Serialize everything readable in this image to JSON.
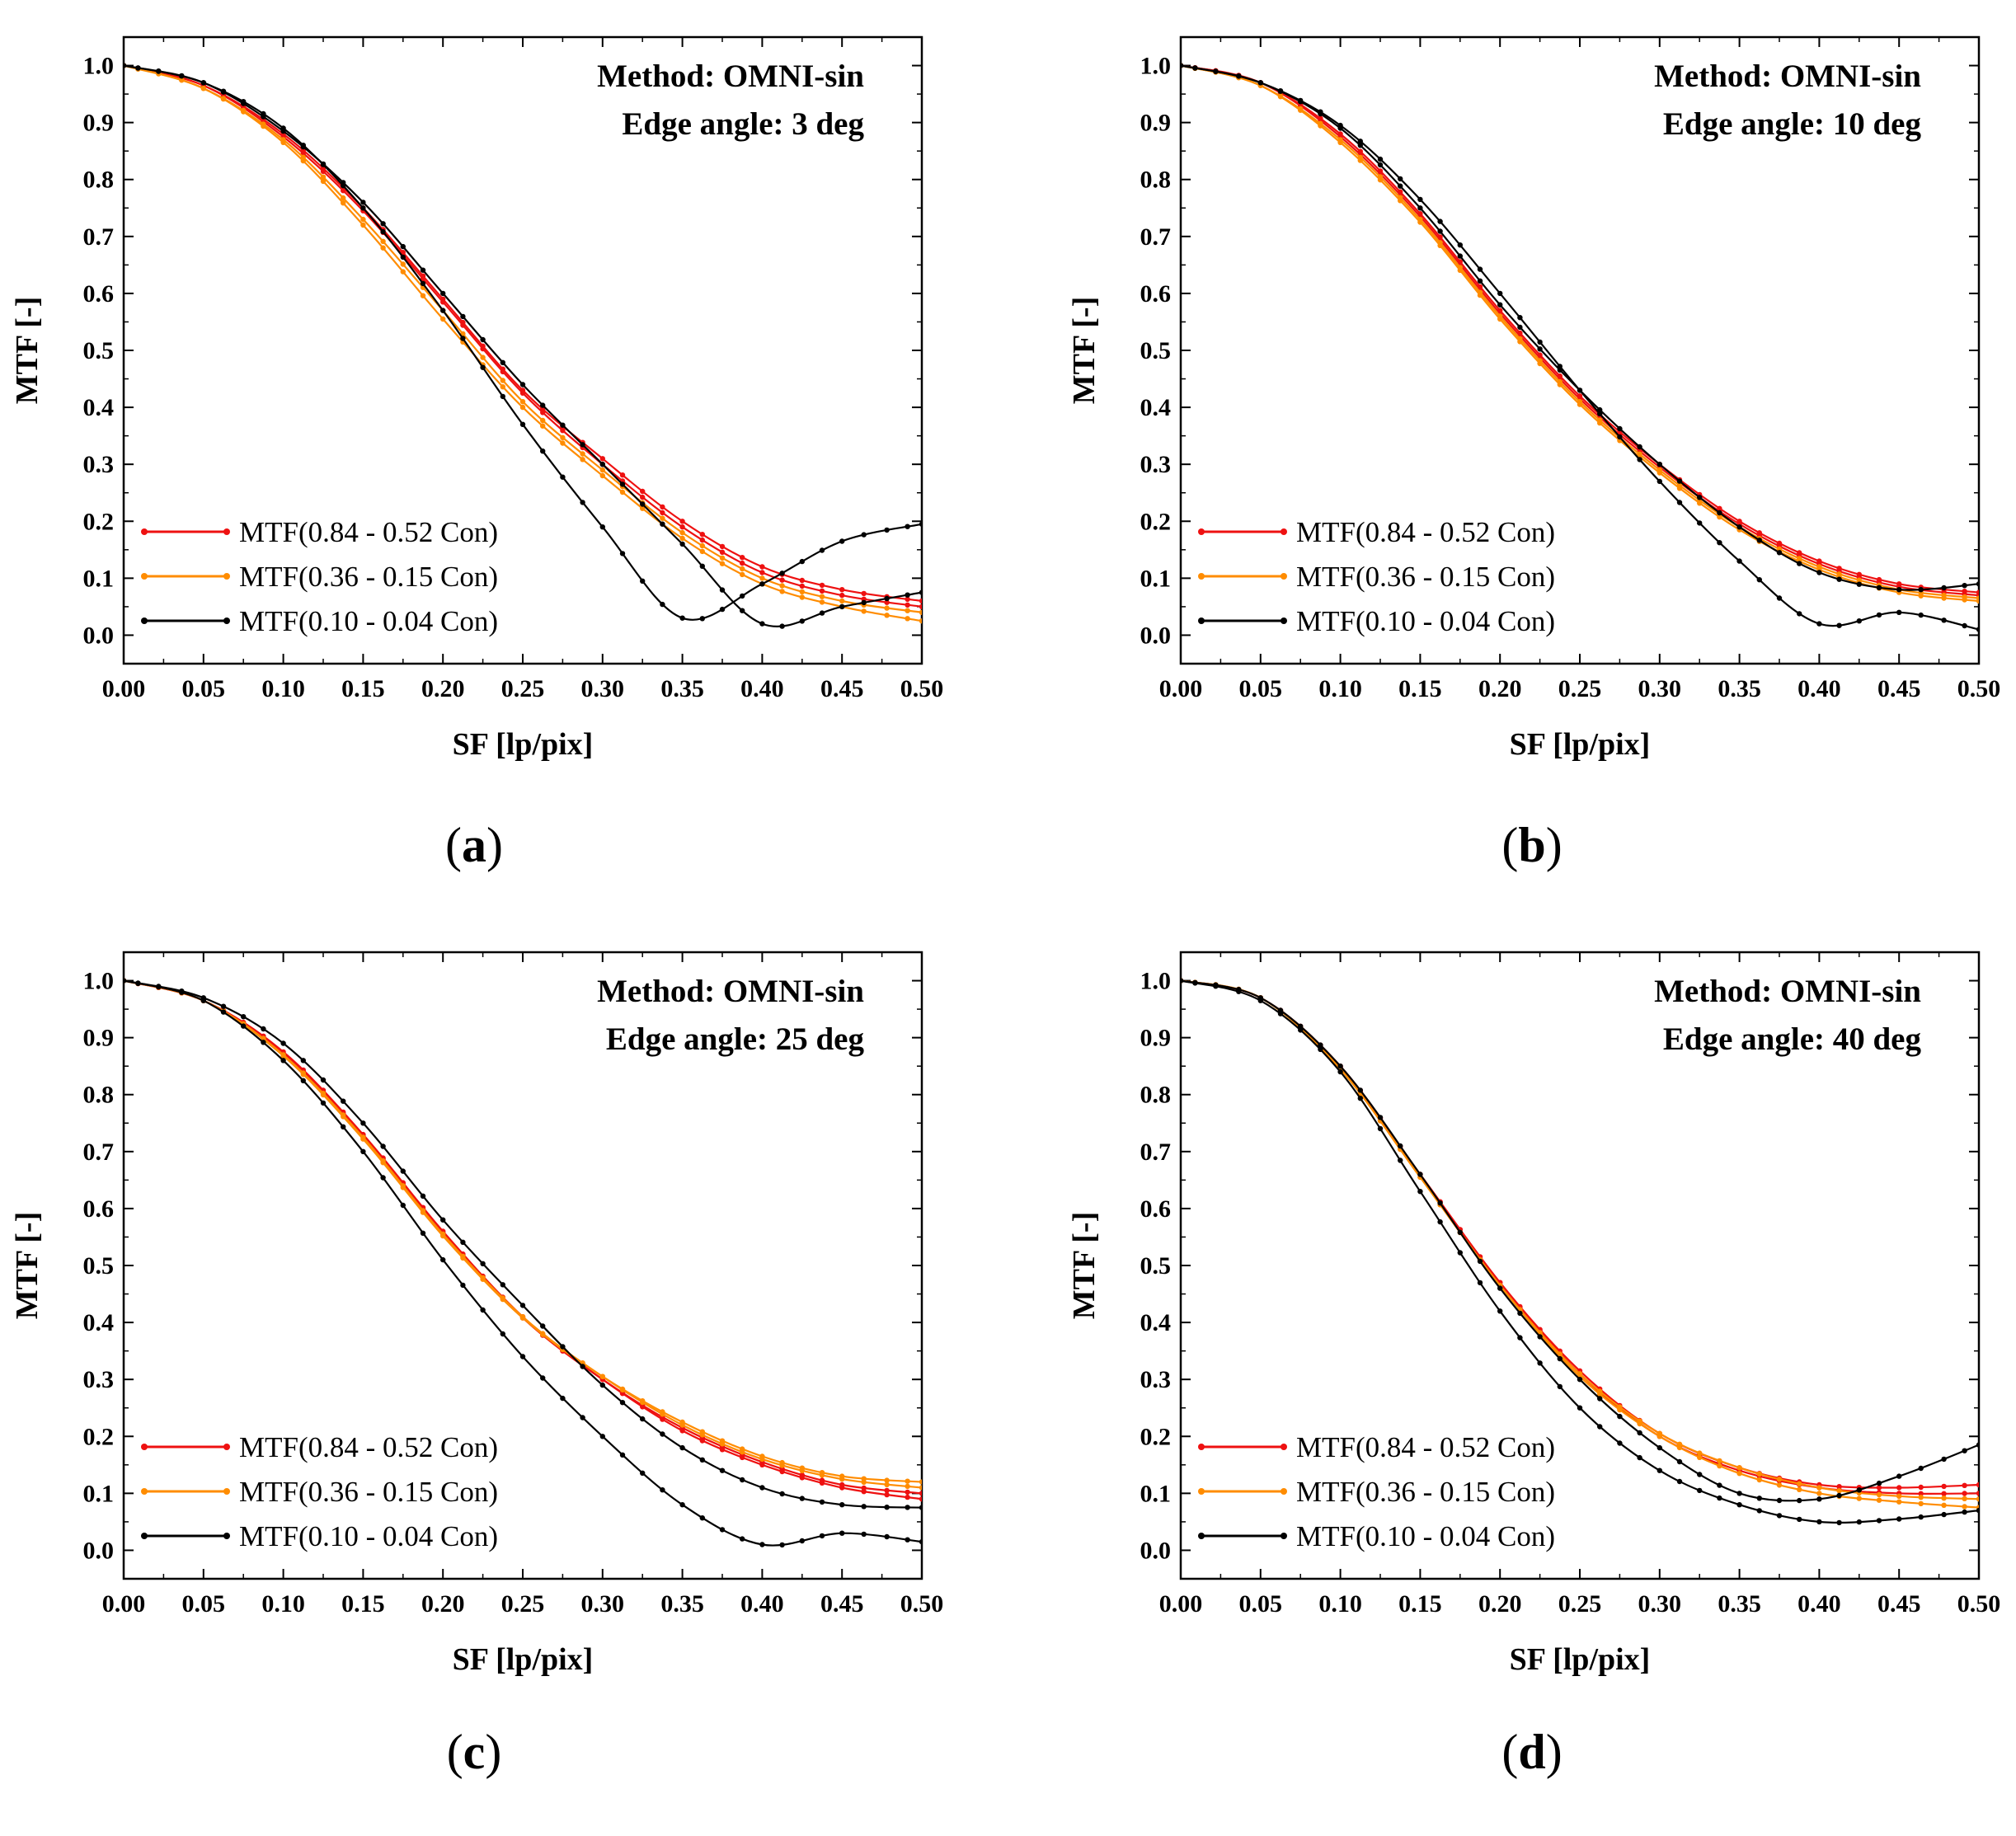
{
  "figure": {
    "series_styles": [
      {
        "name": "MTF(0.84 - 0.52 Con)",
        "color": "#ee1111"
      },
      {
        "name": "MTF(0.36 - 0.15 Con)",
        "color": "#ff8c00"
      },
      {
        "name": "MTF(0.10 - 0.04 Con)",
        "color": "#000000"
      }
    ]
  },
  "chart_data": [
    {
      "type": "line",
      "panel_letter": "a",
      "annotation": [
        "Method: OMNI-sin",
        "Edge angle: 3 deg"
      ],
      "xlabel": "SF [lp/pix]",
      "ylabel": "MTF [-]",
      "xlim": [
        0,
        0.5
      ],
      "ylim": [
        -0.05,
        1.05
      ],
      "xticks": [
        0.0,
        0.05,
        0.1,
        0.15,
        0.2,
        0.25,
        0.3,
        0.35,
        0.4,
        0.45,
        0.5
      ],
      "xtick_labels": [
        "0.00",
        "0.05",
        "0.10",
        "0.15",
        "0.20",
        "0.25",
        "0.30",
        "0.35",
        "0.40",
        "0.45",
        "0.50"
      ],
      "yticks": [
        0.0,
        0.1,
        0.2,
        0.3,
        0.4,
        0.5,
        0.6,
        0.7,
        0.8,
        0.9,
        1.0
      ],
      "ytick_labels": [
        "0.0",
        "0.1",
        "0.2",
        "0.3",
        "0.4",
        "0.5",
        "0.6",
        "0.7",
        "0.8",
        "0.9",
        "1.0"
      ],
      "legend": [
        "MTF(0.84 - 0.52 Con)",
        "MTF(0.36 - 0.15 Con)",
        "MTF(0.10 - 0.04 Con)"
      ],
      "x": [
        0.0,
        0.05,
        0.1,
        0.15,
        0.2,
        0.25,
        0.3,
        0.35,
        0.4,
        0.45,
        0.5
      ],
      "series": [
        {
          "name": "MTF(0.84 - 0.52 Con)",
          "color": "#ee1111",
          "values": [
            1.0,
            0.965,
            0.88,
            0.75,
            0.59,
            0.43,
            0.31,
            0.2,
            0.12,
            0.08,
            0.06
          ]
        },
        {
          "name": "MTF(0.84 - 0.52 Con)",
          "color": "#ee1111",
          "values": [
            1.0,
            0.965,
            0.875,
            0.745,
            0.585,
            0.425,
            0.3,
            0.19,
            0.11,
            0.07,
            0.05
          ]
        },
        {
          "name": "MTF(0.36 - 0.15 Con)",
          "color": "#ff8c00",
          "values": [
            1.0,
            0.96,
            0.87,
            0.73,
            0.57,
            0.41,
            0.29,
            0.18,
            0.1,
            0.06,
            0.04
          ]
        },
        {
          "name": "MTF(0.36 - 0.15 Con)",
          "color": "#ff8c00",
          "values": [
            1.0,
            0.96,
            0.865,
            0.72,
            0.555,
            0.4,
            0.28,
            0.17,
            0.09,
            0.05,
            0.025
          ]
        },
        {
          "name": "MTF(0.10 - 0.04 Con)",
          "color": "#000000",
          "values": [
            1.0,
            0.97,
            0.89,
            0.75,
            0.57,
            0.37,
            0.19,
            0.03,
            0.09,
            0.165,
            0.195
          ]
        },
        {
          "name": "MTF(0.10 - 0.04 Con)",
          "color": "#000000",
          "values": [
            1.0,
            0.97,
            0.885,
            0.76,
            0.6,
            0.44,
            0.3,
            0.16,
            0.02,
            0.05,
            0.075
          ]
        }
      ]
    },
    {
      "type": "line",
      "panel_letter": "b",
      "annotation": [
        "Method: OMNI-sin",
        "Edge angle: 10 deg"
      ],
      "xlabel": "SF [lp/pix]",
      "ylabel": "MTF [-]",
      "xlim": [
        0,
        0.5
      ],
      "ylim": [
        -0.05,
        1.05
      ],
      "xticks": [
        0.0,
        0.05,
        0.1,
        0.15,
        0.2,
        0.25,
        0.3,
        0.35,
        0.4,
        0.45,
        0.5
      ],
      "xtick_labels": [
        "0.00",
        "0.05",
        "0.10",
        "0.15",
        "0.20",
        "0.25",
        "0.30",
        "0.35",
        "0.40",
        "0.45",
        "0.50"
      ],
      "yticks": [
        0.0,
        0.1,
        0.2,
        0.3,
        0.4,
        0.5,
        0.6,
        0.7,
        0.8,
        0.9,
        1.0
      ],
      "ytick_labels": [
        "0.0",
        "0.1",
        "0.2",
        "0.3",
        "0.4",
        "0.5",
        "0.6",
        "0.7",
        "0.8",
        "0.9",
        "1.0"
      ],
      "legend": [
        "MTF(0.84 - 0.52 Con)",
        "MTF(0.36 - 0.15 Con)",
        "MTF(0.10 - 0.04 Con)"
      ],
      "x": [
        0.0,
        0.05,
        0.1,
        0.15,
        0.2,
        0.25,
        0.3,
        0.35,
        0.4,
        0.45,
        0.5
      ],
      "series": [
        {
          "name": "MTF(0.84 - 0.52 Con)",
          "color": "#ee1111",
          "values": [
            1.0,
            0.97,
            0.88,
            0.74,
            0.57,
            0.42,
            0.3,
            0.2,
            0.13,
            0.09,
            0.075
          ]
        },
        {
          "name": "MTF(0.84 - 0.52 Con)",
          "color": "#ee1111",
          "values": [
            1.0,
            0.97,
            0.875,
            0.735,
            0.565,
            0.415,
            0.295,
            0.195,
            0.125,
            0.085,
            0.07
          ]
        },
        {
          "name": "MTF(0.36 - 0.15 Con)",
          "color": "#ff8c00",
          "values": [
            1.0,
            0.965,
            0.87,
            0.73,
            0.56,
            0.41,
            0.29,
            0.19,
            0.12,
            0.08,
            0.065
          ]
        },
        {
          "name": "MTF(0.36 - 0.15 Con)",
          "color": "#ff8c00",
          "values": [
            1.0,
            0.965,
            0.865,
            0.725,
            0.555,
            0.405,
            0.285,
            0.185,
            0.115,
            0.075,
            0.06
          ]
        },
        {
          "name": "MTF(0.10 - 0.04 Con)",
          "color": "#000000",
          "values": [
            1.0,
            0.97,
            0.895,
            0.765,
            0.6,
            0.43,
            0.27,
            0.13,
            0.02,
            0.04,
            0.01
          ]
        },
        {
          "name": "MTF(0.10 - 0.04 Con)",
          "color": "#000000",
          "values": [
            1.0,
            0.97,
            0.89,
            0.75,
            0.58,
            0.43,
            0.3,
            0.19,
            0.11,
            0.08,
            0.09
          ]
        }
      ]
    },
    {
      "type": "line",
      "panel_letter": "c",
      "annotation": [
        "Method: OMNI-sin",
        "Edge angle: 25 deg"
      ],
      "xlabel": "SF [lp/pix]",
      "ylabel": "MTF [-]",
      "xlim": [
        0,
        0.5
      ],
      "ylim": [
        -0.05,
        1.05
      ],
      "xticks": [
        0.0,
        0.05,
        0.1,
        0.15,
        0.2,
        0.25,
        0.3,
        0.35,
        0.4,
        0.45,
        0.5
      ],
      "xtick_labels": [
        "0.00",
        "0.05",
        "0.10",
        "0.15",
        "0.20",
        "0.25",
        "0.30",
        "0.35",
        "0.40",
        "0.45",
        "0.50"
      ],
      "yticks": [
        0.0,
        0.1,
        0.2,
        0.3,
        0.4,
        0.5,
        0.6,
        0.7,
        0.8,
        0.9,
        1.0
      ],
      "ytick_labels": [
        "0.0",
        "0.1",
        "0.2",
        "0.3",
        "0.4",
        "0.5",
        "0.6",
        "0.7",
        "0.8",
        "0.9",
        "1.0"
      ],
      "legend": [
        "MTF(0.84 - 0.52 Con)",
        "MTF(0.36 - 0.15 Con)",
        "MTF(0.10 - 0.04 Con)"
      ],
      "x": [
        0.0,
        0.05,
        0.1,
        0.15,
        0.2,
        0.25,
        0.3,
        0.35,
        0.4,
        0.45,
        0.5
      ],
      "series": [
        {
          "name": "MTF(0.84 - 0.52 Con)",
          "color": "#ee1111",
          "values": [
            1.0,
            0.965,
            0.875,
            0.73,
            0.56,
            0.41,
            0.3,
            0.21,
            0.15,
            0.11,
            0.09
          ]
        },
        {
          "name": "MTF(0.84 - 0.52 Con)",
          "color": "#ee1111",
          "values": [
            1.0,
            0.965,
            0.872,
            0.728,
            0.558,
            0.408,
            0.3,
            0.215,
            0.155,
            0.115,
            0.1
          ]
        },
        {
          "name": "MTF(0.36 - 0.15 Con)",
          "color": "#ff8c00",
          "values": [
            1.0,
            0.965,
            0.87,
            0.725,
            0.555,
            0.41,
            0.305,
            0.22,
            0.16,
            0.125,
            0.11
          ]
        },
        {
          "name": "MTF(0.36 - 0.15 Con)",
          "color": "#ff8c00",
          "values": [
            1.0,
            0.965,
            0.868,
            0.722,
            0.552,
            0.408,
            0.305,
            0.225,
            0.165,
            0.13,
            0.12
          ]
        },
        {
          "name": "MTF(0.10 - 0.04 Con)",
          "color": "#000000",
          "values": [
            1.0,
            0.965,
            0.86,
            0.7,
            0.51,
            0.34,
            0.2,
            0.08,
            0.01,
            0.03,
            0.015
          ]
        },
        {
          "name": "MTF(0.10 - 0.04 Con)",
          "color": "#000000",
          "values": [
            1.0,
            0.97,
            0.89,
            0.75,
            0.58,
            0.43,
            0.29,
            0.18,
            0.11,
            0.08,
            0.075
          ]
        }
      ]
    },
    {
      "type": "line",
      "panel_letter": "d",
      "annotation": [
        "Method: OMNI-sin",
        "Edge angle: 40 deg"
      ],
      "xlabel": "SF [lp/pix]",
      "ylabel": "MTF [-]",
      "xlim": [
        0,
        0.5
      ],
      "ylim": [
        -0.05,
        1.05
      ],
      "xticks": [
        0.0,
        0.05,
        0.1,
        0.15,
        0.2,
        0.25,
        0.3,
        0.35,
        0.4,
        0.45,
        0.5
      ],
      "xtick_labels": [
        "0.00",
        "0.05",
        "0.10",
        "0.15",
        "0.20",
        "0.25",
        "0.30",
        "0.35",
        "0.40",
        "0.45",
        "0.50"
      ],
      "yticks": [
        0.0,
        0.1,
        0.2,
        0.3,
        0.4,
        0.5,
        0.6,
        0.7,
        0.8,
        0.9,
        1.0
      ],
      "ytick_labels": [
        "0.0",
        "0.1",
        "0.2",
        "0.3",
        "0.4",
        "0.5",
        "0.6",
        "0.7",
        "0.8",
        "0.9",
        "1.0"
      ],
      "legend": [
        "MTF(0.84 - 0.52 Con)",
        "MTF(0.36 - 0.15 Con)",
        "MTF(0.10 - 0.04 Con)"
      ],
      "x": [
        0.0,
        0.05,
        0.1,
        0.15,
        0.2,
        0.25,
        0.3,
        0.35,
        0.4,
        0.45,
        0.5
      ],
      "series": [
        {
          "name": "MTF(0.84 - 0.52 Con)",
          "color": "#ee1111",
          "values": [
            1.0,
            0.97,
            0.85,
            0.66,
            0.47,
            0.31,
            0.2,
            0.14,
            0.11,
            0.1,
            0.1
          ]
        },
        {
          "name": "MTF(0.84 - 0.52 Con)",
          "color": "#ee1111",
          "values": [
            1.0,
            0.97,
            0.848,
            0.66,
            0.47,
            0.315,
            0.205,
            0.145,
            0.115,
            0.11,
            0.115
          ]
        },
        {
          "name": "MTF(0.36 - 0.15 Con)",
          "color": "#ff8c00",
          "values": [
            1.0,
            0.97,
            0.845,
            0.655,
            0.465,
            0.31,
            0.205,
            0.145,
            0.11,
            0.095,
            0.09
          ]
        },
        {
          "name": "MTF(0.36 - 0.15 Con)",
          "color": "#ff8c00",
          "values": [
            1.0,
            0.97,
            0.845,
            0.655,
            0.465,
            0.305,
            0.2,
            0.135,
            0.1,
            0.085,
            0.075
          ]
        },
        {
          "name": "MTF(0.10 - 0.04 Con)",
          "color": "#000000",
          "values": [
            1.0,
            0.97,
            0.85,
            0.66,
            0.46,
            0.3,
            0.18,
            0.1,
            0.09,
            0.13,
            0.185
          ]
        },
        {
          "name": "MTF(0.10 - 0.04 Con)",
          "color": "#000000",
          "values": [
            1.0,
            0.965,
            0.84,
            0.63,
            0.42,
            0.25,
            0.14,
            0.08,
            0.05,
            0.055,
            0.07
          ]
        }
      ]
    }
  ]
}
